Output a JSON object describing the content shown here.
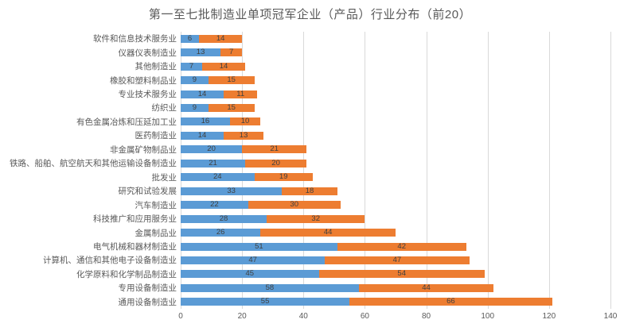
{
  "title": "第一至七批制造业单项冠军企业（产品）行业分布（前20）",
  "colors": {
    "series1": "#5B9BD5",
    "series2": "#ED7D31",
    "gridline": "#D9D9D9",
    "axis_text": "#595959",
    "value_text": "#404040",
    "background": "#FFFFFF"
  },
  "chart_data": {
    "type": "bar",
    "orientation": "horizontal",
    "stacked": true,
    "title": "第一至七批制造业单项冠军企业（产品）行业分布（前20）",
    "categories": [
      "软件和信息技术服务业",
      "仪器仪表制造业",
      "其他制造业",
      "橡胶和塑料制品业",
      "专业技术服务业",
      "纺织业",
      "有色金属冶炼和压延加工业",
      "医药制造业",
      "非金属矿物制品业",
      "铁路、船舶、航空航天和其他运输设备制造业",
      "批发业",
      "研究和试验发展",
      "汽车制造业",
      "科技推广和应用服务业",
      "金属制品业",
      "电气机械和器材制造业",
      "计算机、通信和其他电子设备制造业",
      "化学原料和化学制品制造业",
      "专用设备制造业",
      "通用设备制造业"
    ],
    "series": [
      {
        "name": "series-1-blue",
        "color": "#5B9BD5",
        "values": [
          6,
          13,
          7,
          9,
          14,
          9,
          16,
          14,
          20,
          21,
          24,
          33,
          22,
          28,
          26,
          51,
          47,
          45,
          58,
          55
        ]
      },
      {
        "name": "series-2-orange",
        "color": "#ED7D31",
        "values": [
          14,
          7,
          14,
          15,
          11,
          15,
          10,
          13,
          21,
          20,
          19,
          18,
          30,
          32,
          44,
          42,
          47,
          54,
          44,
          66
        ]
      }
    ],
    "xlim": [
      0,
      140
    ],
    "xticks": [
      0,
      20,
      40,
      60,
      80,
      100,
      120,
      140
    ],
    "grid": true,
    "legend": false,
    "data_labels": true
  }
}
